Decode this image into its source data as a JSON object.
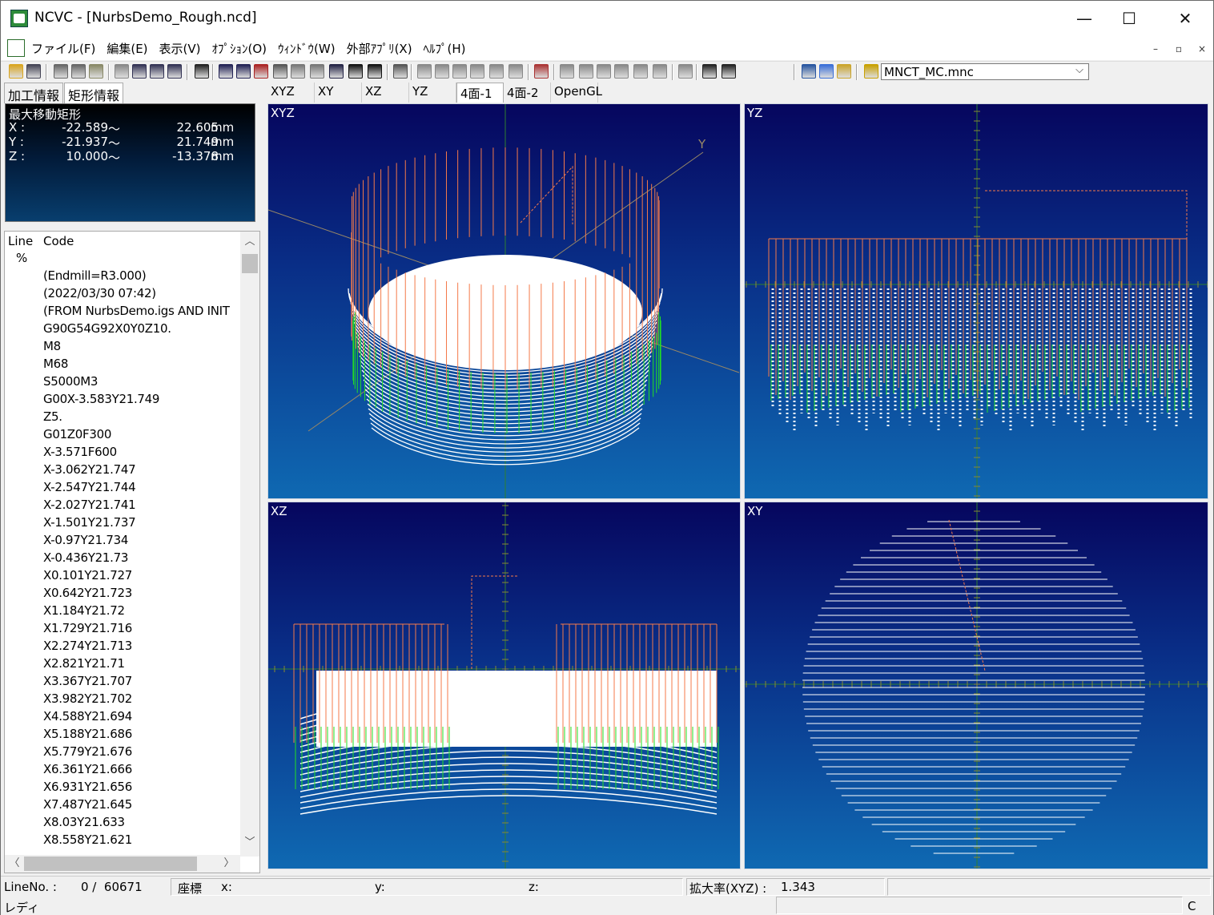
{
  "window": {
    "title": "NCVC - [NurbsDemo_Rough.ncd]",
    "minimize_glyph": "—",
    "maximize_glyph": "☐",
    "close_glyph": "✕"
  },
  "menu": {
    "items": [
      "ファイル(F)",
      "編集(E)",
      "表示(V)",
      "ｵﾌﾟｼｮﾝ(O)",
      "ｳｨﾝﾄﾞｳ(W)",
      "外部ｱﾌﾟﾘ(X)",
      "ﾍﾙﾌﾟ(H)"
    ],
    "mdi_minimize": "–",
    "mdi_restore": "▫",
    "mdi_close": "×"
  },
  "toolbar": {
    "machine_file": "MNCT_MC.mnc",
    "dropdown_glyph": "⌵"
  },
  "left_tabs": [
    "加工情報",
    "矩形情報"
  ],
  "rect_info": {
    "title": "最大移動矩形",
    "rows": [
      {
        "axis": "X :",
        "min": "-22.589",
        "sep": "～",
        "max": "22.605",
        "unit": "mm"
      },
      {
        "axis": "Y :",
        "min": "-21.937",
        "sep": "～",
        "max": "21.749",
        "unit": "mm"
      },
      {
        "axis": "Z :",
        "min": "10.000",
        "sep": "～",
        "max": "-13.378",
        "unit": "mm"
      }
    ]
  },
  "code": {
    "col_line": "Line",
    "col_code": "Code",
    "lines": [
      "%",
      "(Endmill=R3.000)",
      "(2022/03/30 07:42)",
      "(FROM NurbsDemo.igs AND INIT",
      "G90G54G92X0Y0Z10.",
      "M8",
      "M68",
      "S5000M3",
      "G00X-3.583Y21.749",
      "Z5.",
      "G01Z0F300",
      "X-3.571F600",
      "X-3.062Y21.747",
      "X-2.547Y21.744",
      "X-2.027Y21.741",
      "X-1.501Y21.737",
      "X-0.97Y21.734",
      "X-0.436Y21.73",
      "X0.101Y21.727",
      "X0.642Y21.723",
      "X1.184Y21.72",
      "X1.729Y21.716",
      "X2.274Y21.713",
      "X2.821Y21.71",
      "X3.367Y21.707",
      "X3.982Y21.702",
      "X4.588Y21.694",
      "X5.188Y21.686",
      "X5.779Y21.676",
      "X6.361Y21.666",
      "X6.931Y21.656",
      "X7.487Y21.645",
      "X8.03Y21.633",
      "X8.558Y21.621"
    ],
    "scroll_up": "︿",
    "scroll_down": "﹀",
    "scroll_left": "〈",
    "scroll_right": "〉"
  },
  "view_tabs": [
    "XYZ",
    "XY",
    "XZ",
    "YZ",
    "4面-1",
    "4面-2",
    "OpenGL"
  ],
  "active_view_tab": "4面-1",
  "views": {
    "xyz": "XYZ",
    "yz": "YZ",
    "xz": "XZ",
    "xy": "XY",
    "y_axis_label": "Y"
  },
  "colors": {
    "rapid": "#f47a4a",
    "cut": "#ffffff",
    "plunge": "#22e022",
    "axis": "#2f7f2f",
    "axis_tick": "#888833"
  },
  "status": {
    "line_label": "LineNo. :",
    "line_value": "0 /  60671",
    "coord_label": "座標",
    "x_label": "x:",
    "y_label": "y:",
    "z_label": "z:",
    "zoom_label": "拡大率(XYZ) :",
    "zoom_value": "1.343",
    "ready": "レディ",
    "indicator": "C"
  }
}
